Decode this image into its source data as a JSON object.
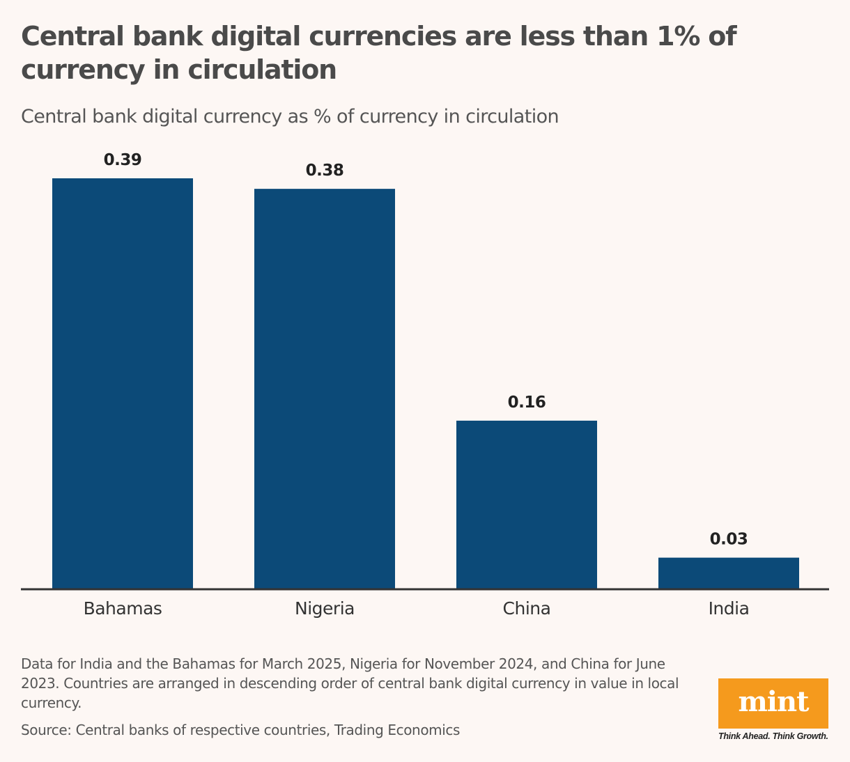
{
  "header": {
    "title": "Central bank digital currencies are less than 1% of currency in circulation",
    "subtitle": "Central bank digital currency as % of currency in circulation"
  },
  "chart_data": {
    "type": "bar",
    "title": "Central bank digital currencies are less than 1% of currency in circulation",
    "subtitle": "Central bank digital currency as % of currency in circulation",
    "categories": [
      "Bahamas",
      "Nigeria",
      "China",
      "India"
    ],
    "values": [
      0.39,
      0.38,
      0.16,
      0.03
    ],
    "value_labels": [
      "0.39",
      "0.38",
      "0.16",
      "0.03"
    ],
    "xlabel": "",
    "ylabel": "",
    "ylim": [
      0,
      0.39
    ],
    "grid": false,
    "legend": "none",
    "bar_color": "#0c4a78"
  },
  "footer": {
    "note": "Data for India and the Bahamas for March 2025, Nigeria for November 2024, and China for June 2023. Countries are arranged in descending order of central bank digital currency in value in local currency.",
    "source": "Source: Central banks of respective countries, Trading Economics"
  },
  "brand": {
    "logo_text": "mint",
    "tagline": "Think Ahead. Think Growth.",
    "logo_color": "#f59a1d"
  }
}
